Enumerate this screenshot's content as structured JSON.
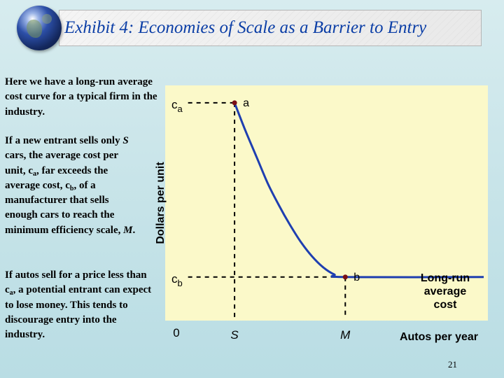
{
  "header": {
    "title": "Exhibit 4: Economies of Scale as a Barrier to Entry",
    "logo_icon": "globe-icon"
  },
  "notes": {
    "p1": "Here we have a long-run average cost curve for a typical firm in the industry.",
    "p2": {
      "a": "If a new entrant sells only ",
      "b": "S",
      "c": " cars, the average cost per unit, c",
      "d": "a",
      "e": ", far exceeds the average cost, c",
      "f": "b",
      "g": ", of a manufacturer that sells enough cars to reach the minimum efficiency scale, ",
      "h": "M",
      "i": "."
    },
    "p3": {
      "a": "If autos sell for a price less than c",
      "b": "a",
      "c": ", a potential entrant can expect to lose money. This tends to discourage entry into the industry."
    }
  },
  "page_number": "21",
  "colors": {
    "title_text": "#0b3ea6",
    "plot_bg": "#fbf9c9",
    "curve": "#1f3fb0",
    "point": "#7a0f14",
    "text": "#000000"
  },
  "chart_data": {
    "type": "line",
    "title": "",
    "ylabel": "Dollars per unit",
    "xlabel": "Autos per year",
    "x_ticks": [
      {
        "label": "0",
        "x": 0
      },
      {
        "label": "S",
        "x": 1
      },
      {
        "label": "M",
        "x": 3
      }
    ],
    "y_ticks": [
      {
        "label": "c",
        "sub": "a",
        "y": 10
      },
      {
        "label": "c",
        "sub": "b",
        "y": 2
      }
    ],
    "xlim": [
      0,
      5.5
    ],
    "ylim": [
      0,
      10.8
    ],
    "points": [
      {
        "label": "a",
        "x": 1,
        "y": 10
      },
      {
        "label": "b",
        "x": 3,
        "y": 2
      }
    ],
    "series": [
      {
        "name": "Long-run average cost",
        "x": [
          1,
          1.2,
          1.4,
          1.6,
          1.8,
          2.0,
          2.2,
          2.4,
          2.6,
          2.8,
          3.0,
          5.5
        ],
        "y": [
          10,
          8.7,
          7.5,
          6.3,
          5.3,
          4.4,
          3.6,
          2.95,
          2.45,
          2.12,
          2.0,
          2.0
        ]
      }
    ],
    "guides": {
      "dashed_lines": true
    }
  }
}
